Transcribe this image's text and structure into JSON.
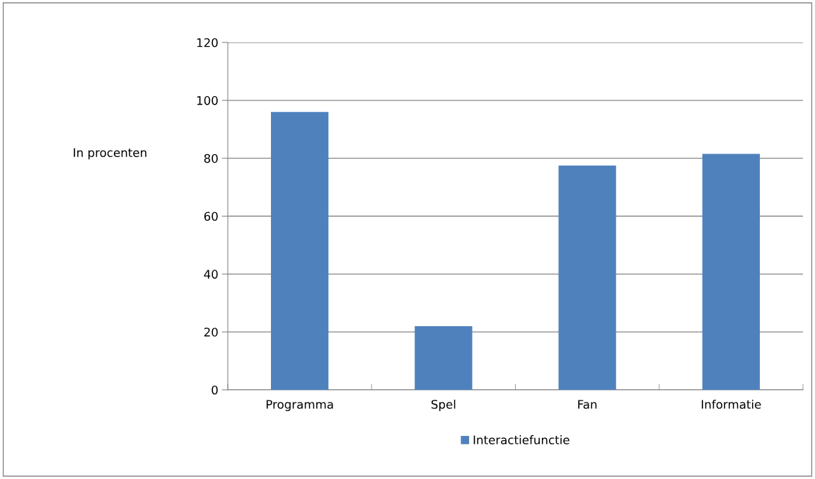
{
  "chart_data": {
    "type": "bar",
    "ylabel": "In procenten",
    "categories": [
      "Programma",
      "Spel",
      "Fan",
      "Informatie"
    ],
    "series": [
      {
        "name": "Interactiefunctie",
        "color": "#4f81bd",
        "values": [
          96,
          22,
          77.5,
          81.5
        ]
      }
    ],
    "ylim": [
      0,
      120
    ],
    "yticks": [
      0,
      20,
      40,
      60,
      80,
      100,
      120
    ],
    "grid": "y",
    "legend": "bottom"
  }
}
